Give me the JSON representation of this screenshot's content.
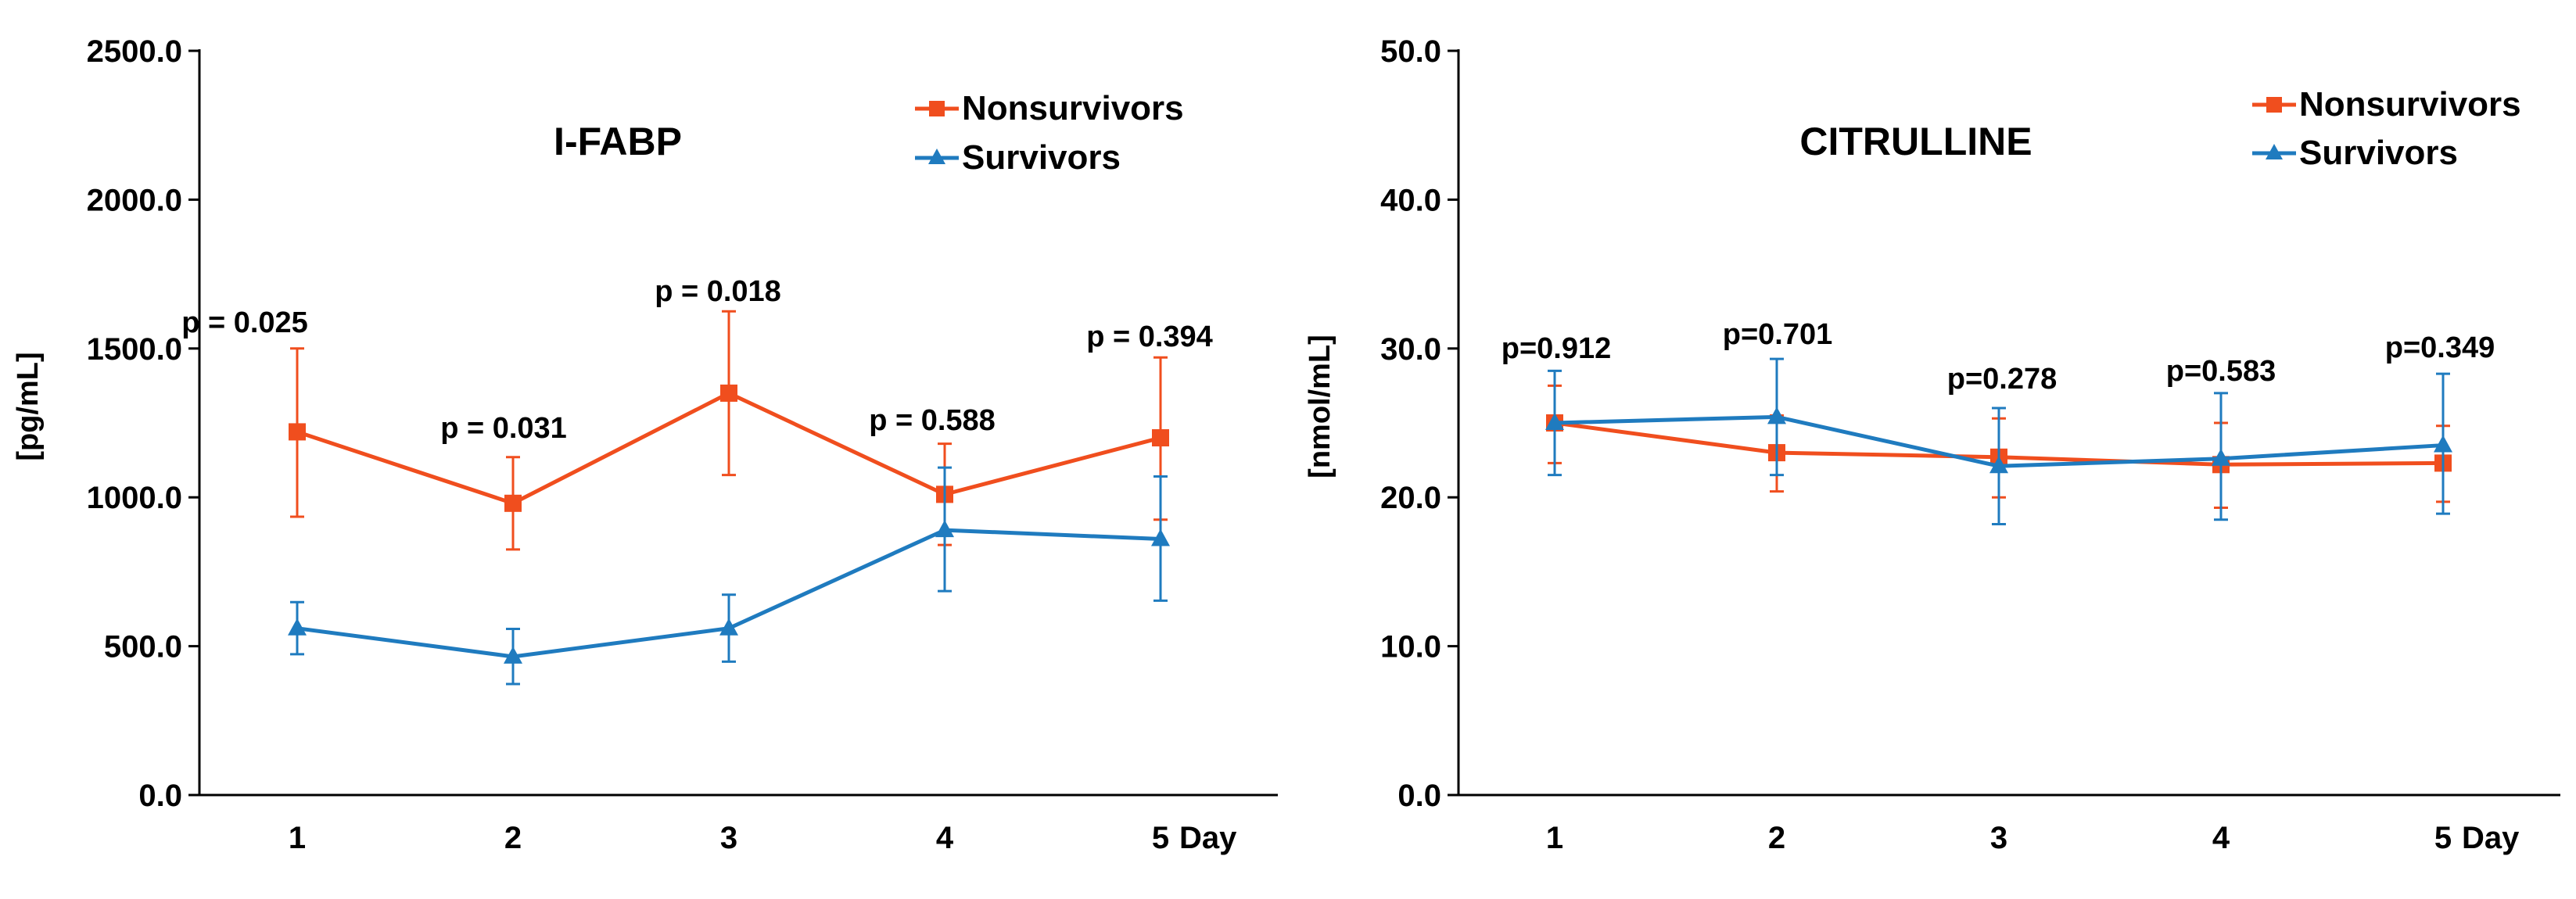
{
  "chart_data": [
    {
      "type": "line",
      "title": "I-FABP",
      "ylabel": "[pg/mL]",
      "xlabel": "Day",
      "categories": [
        "1",
        "2",
        "3",
        "4",
        "5"
      ],
      "ylim": [
        0,
        2500
      ],
      "yticks": [
        "0.0",
        "500.0",
        "1000.0",
        "1500.0",
        "2000.0",
        "2500.0"
      ],
      "series": [
        {
          "name": "Nonsurvivors",
          "color": "#F04E1E",
          "marker": "square",
          "values": [
            1220,
            980,
            1350,
            1010,
            1200
          ],
          "err_upper": [
            1500,
            1135,
            1625,
            1180,
            1470
          ],
          "err_lower": [
            935,
            825,
            1075,
            840,
            925
          ]
        },
        {
          "name": "Survivors",
          "color": "#1F7BBF",
          "marker": "triangle",
          "values": [
            560,
            465,
            560,
            890,
            860
          ],
          "err_upper": [
            648,
            558,
            673,
            1100,
            1070
          ],
          "err_lower": [
            473,
            373,
            448,
            685,
            653
          ]
        }
      ],
      "pvalues": [
        "p = 0.025",
        "p = 0.031",
        "p = 0.018",
        "p = 0.588",
        "p = 0.394"
      ]
    },
    {
      "type": "line",
      "title": "CITRULLINE",
      "ylabel": "[nmol/mL]",
      "xlabel": "Day",
      "categories": [
        "1",
        "2",
        "3",
        "4",
        "5"
      ],
      "ylim": [
        0,
        50
      ],
      "yticks": [
        "0.0",
        "10.0",
        "20.0",
        "30.0",
        "40.0",
        "50.0"
      ],
      "series": [
        {
          "name": "Nonsurvivors",
          "color": "#F04E1E",
          "marker": "square",
          "values": [
            25.0,
            23.0,
            22.7,
            22.2,
            22.3
          ],
          "err_upper": [
            27.5,
            25.5,
            25.3,
            25.0,
            24.8
          ],
          "err_lower": [
            22.3,
            20.4,
            20.0,
            19.3,
            19.7
          ]
        },
        {
          "name": "Survivors",
          "color": "#1F7BBF",
          "marker": "triangle",
          "values": [
            25.0,
            25.4,
            22.1,
            22.6,
            23.5
          ],
          "err_upper": [
            28.5,
            29.3,
            26.0,
            27.0,
            28.3
          ],
          "err_lower": [
            21.5,
            21.5,
            18.2,
            18.5,
            18.9
          ]
        }
      ],
      "pvalues": [
        "p=0.912",
        "p=0.701",
        "p=0.278",
        "p=0.583",
        "p=0.349"
      ]
    }
  ]
}
